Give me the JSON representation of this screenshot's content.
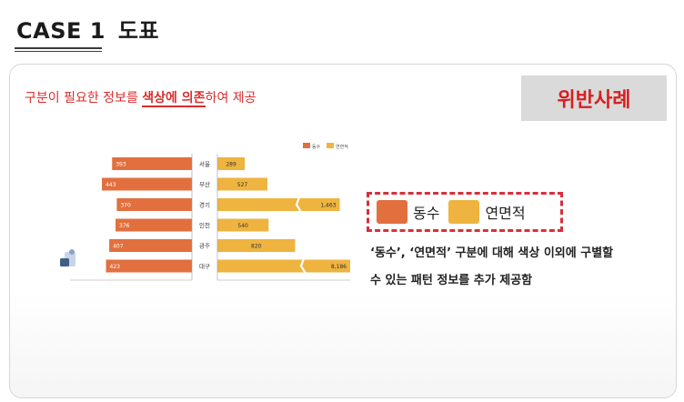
{
  "header": {
    "case_label": "CASE 1",
    "case_topic": "도표"
  },
  "card": {
    "headline_pre": "구분이 필요한 정보를 ",
    "headline_em": "색상에 의존",
    "headline_post": "하여 제공",
    "violation_badge": "위반사례",
    "legend_callout": [
      "동수",
      "연면적"
    ],
    "description": [
      "‘동수’, ‘연면적’ 구분에 대해 색상 이외에 구별할",
      "수 있는 패턴 정보를 추가 제공함"
    ]
  },
  "colors": {
    "dongsu": "#e1703e",
    "area": "#eeb43f",
    "accent_red": "#d92d2d"
  },
  "chart_data": {
    "type": "bar",
    "orientation": "horizontal-butterfly",
    "categories": [
      "서울",
      "부산",
      "경기",
      "인천",
      "광주",
      "대구"
    ],
    "series": [
      {
        "name": "동수",
        "values": [
          393,
          443,
          370,
          376,
          407,
          423
        ],
        "direction": "left",
        "color": "#e1703e"
      },
      {
        "name": "연면적",
        "values": [
          289,
          527,
          1463,
          540,
          820,
          8186
        ],
        "direction": "right",
        "color": "#eeb43f"
      }
    ],
    "left_axis": {
      "ticks": [
        "600",
        "500",
        "400",
        "300",
        "200",
        "100",
        "0"
      ],
      "range": [
        0,
        600
      ]
    },
    "right_axis": {
      "ticks": [
        "0",
        "200",
        "400",
        "600",
        "800",
        "1,000",
        "1,200",
        "1,400"
      ],
      "range": [
        0,
        1400
      ],
      "broken": true
    },
    "legend": [
      "동수",
      "연면적"
    ],
    "legend_position": "top-right"
  }
}
